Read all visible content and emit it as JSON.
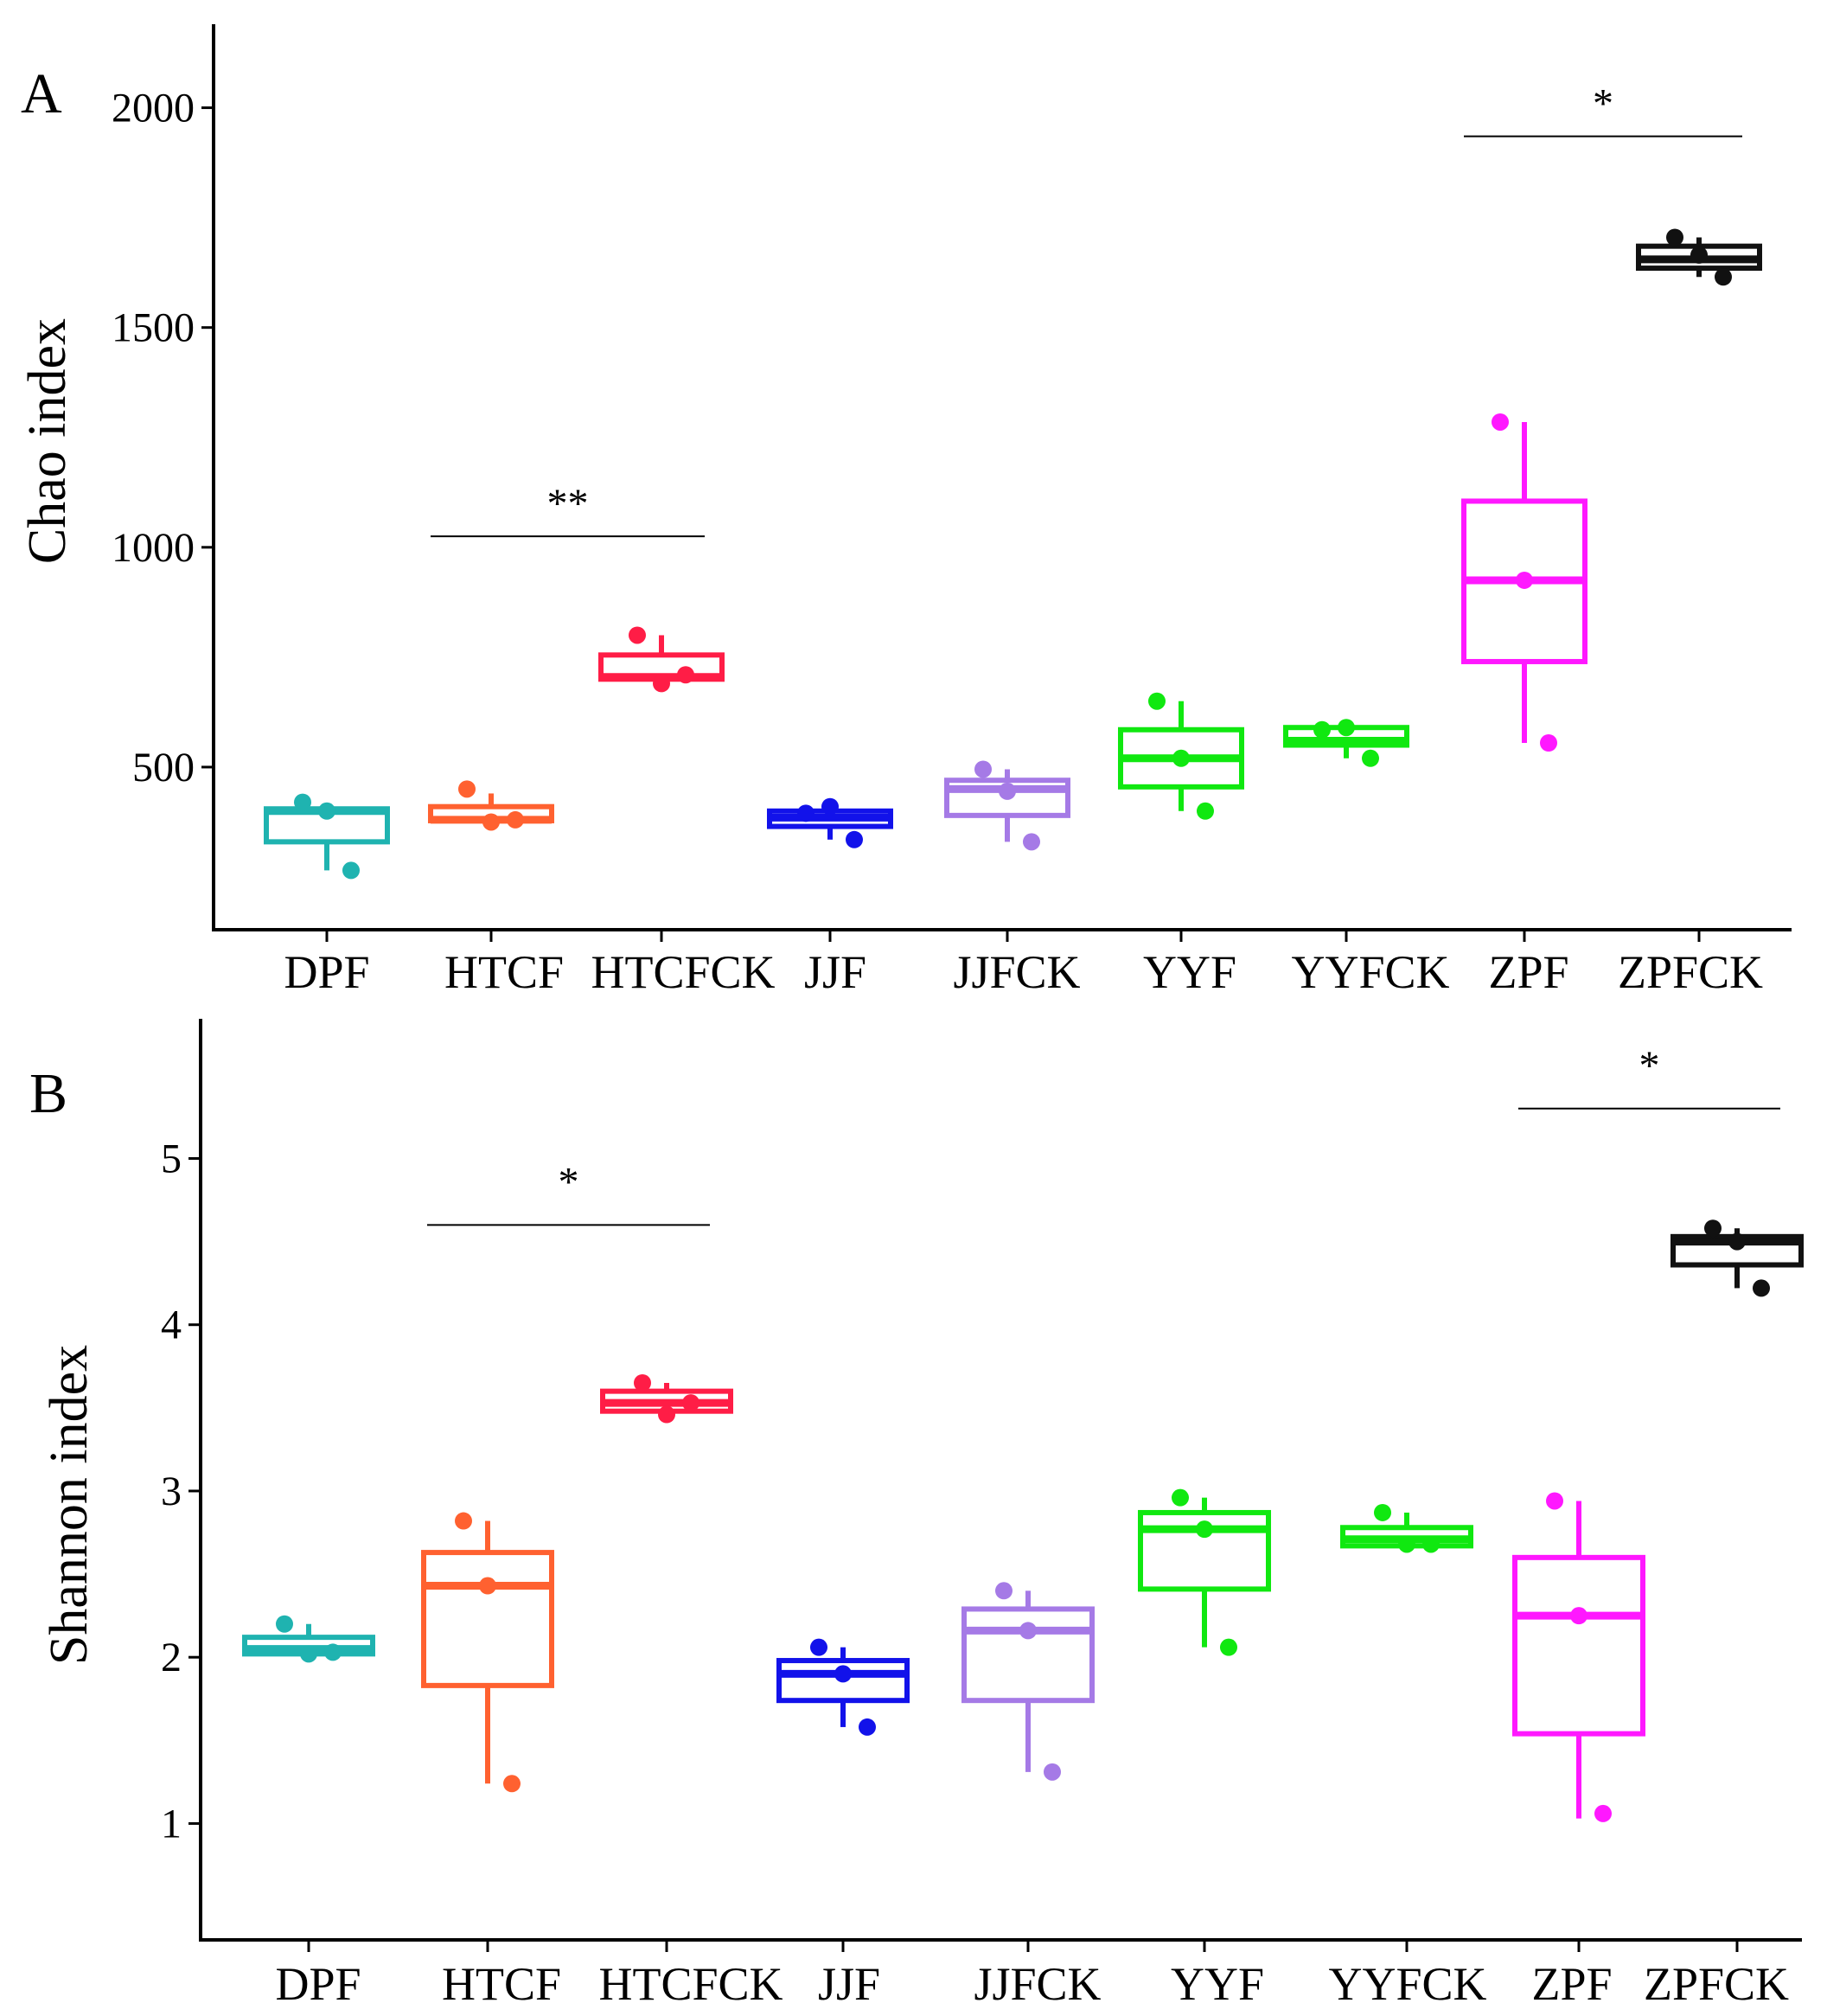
{
  "chart_data": [
    {
      "type": "box",
      "panel_label": "A",
      "title": "",
      "xlabel": "",
      "ylabel": "Chao index",
      "ylim": [
        130,
        2190
      ],
      "yticks": [
        500,
        1000,
        1500,
        2000
      ],
      "categories": [
        "DPF",
        "HTCF",
        "HTCFCK",
        "JJF",
        "JJFCK",
        "YYF",
        "YYFCK",
        "ZPF",
        "ZPFCK"
      ],
      "colors": [
        "#1fb3b0",
        "#ff6130",
        "#ff1d46",
        "#1212ea",
        "#a57ae6",
        "#10e810",
        "#10e810",
        "#ff18ff",
        "#111111"
      ],
      "boxes": [
        {
          "q1": 330,
          "median": 400,
          "q3": 405,
          "whisker_low": 265,
          "whisker_high": 415
        },
        {
          "q1": 378,
          "median": 380,
          "q3": 410,
          "whisker_low": 375,
          "whisker_high": 440
        },
        {
          "q1": 700,
          "median": 705,
          "q3": 755,
          "whisker_low": 690,
          "whisker_high": 800
        },
        {
          "q1": 365,
          "median": 385,
          "q3": 400,
          "whisker_low": 335,
          "whisker_high": 410
        },
        {
          "q1": 390,
          "median": 450,
          "q3": 470,
          "whisker_low": 330,
          "whisker_high": 495
        },
        {
          "q1": 455,
          "median": 520,
          "q3": 585,
          "whisker_low": 400,
          "whisker_high": 650
        },
        {
          "q1": 550,
          "median": 560,
          "q3": 590,
          "whisker_low": 520,
          "whisker_high": 590
        },
        {
          "q1": 740,
          "median": 925,
          "q3": 1105,
          "whisker_low": 555,
          "whisker_high": 1285
        },
        {
          "q1": 1635,
          "median": 1655,
          "q3": 1685,
          "whisker_low": 1615,
          "whisker_high": 1705
        }
      ],
      "points": [
        [
          420,
          400,
          265
        ],
        [
          450,
          375,
          380
        ],
        [
          800,
          690,
          710
        ],
        [
          395,
          410,
          335
        ],
        [
          495,
          445,
          330
        ],
        [
          650,
          520,
          400
        ],
        [
          585,
          590,
          520
        ],
        [
          1285,
          925,
          555
        ],
        [
          1705,
          1665,
          1615
        ]
      ],
      "significance": [
        {
          "label": "**",
          "from": "HTCF",
          "to": "HTCFCK",
          "y": 1025
        },
        {
          "label": "*",
          "from": "ZPF",
          "to": "ZPFCK",
          "y": 1935
        }
      ]
    },
    {
      "type": "box",
      "panel_label": "B",
      "title": "",
      "xlabel": "",
      "ylabel": "Shannon index",
      "ylim": [
        0.3,
        5.84
      ],
      "yticks": [
        1,
        2,
        3,
        4,
        5
      ],
      "categories": [
        "DPF",
        "HTCF",
        "HTCFCK",
        "JJF",
        "JJFCK",
        "YYF",
        "YYFCK",
        "ZPF",
        "ZPFCK"
      ],
      "colors": [
        "#1fb3b0",
        "#ff6130",
        "#ff1d46",
        "#1212ea",
        "#a57ae6",
        "#10e810",
        "#10e810",
        "#ff18ff",
        "#111111"
      ],
      "boxes": [
        {
          "q1": 2.02,
          "median": 2.05,
          "q3": 2.12,
          "whisker_low": 2.02,
          "whisker_high": 2.2
        },
        {
          "q1": 1.83,
          "median": 2.43,
          "q3": 2.63,
          "whisker_low": 1.24,
          "whisker_high": 2.82
        },
        {
          "q1": 3.48,
          "median": 3.53,
          "q3": 3.6,
          "whisker_low": 3.46,
          "whisker_high": 3.65
        },
        {
          "q1": 1.74,
          "median": 1.9,
          "q3": 1.98,
          "whisker_low": 1.58,
          "whisker_high": 2.06
        },
        {
          "q1": 1.74,
          "median": 2.16,
          "q3": 2.29,
          "whisker_low": 1.31,
          "whisker_high": 2.4
        },
        {
          "q1": 2.41,
          "median": 2.77,
          "q3": 2.87,
          "whisker_low": 2.06,
          "whisker_high": 2.96
        },
        {
          "q1": 2.67,
          "median": 2.71,
          "q3": 2.78,
          "whisker_low": 2.67,
          "whisker_high": 2.87
        },
        {
          "q1": 1.54,
          "median": 2.25,
          "q3": 2.6,
          "whisker_low": 1.03,
          "whisker_high": 2.94
        },
        {
          "q1": 4.36,
          "median": 4.5,
          "q3": 4.53,
          "whisker_low": 4.22,
          "whisker_high": 4.58
        }
      ],
      "points": [
        [
          2.2,
          2.02,
          2.03
        ],
        [
          2.82,
          2.43,
          1.24
        ],
        [
          3.65,
          3.46,
          3.53
        ],
        [
          2.06,
          1.9,
          1.58
        ],
        [
          2.4,
          2.16,
          1.31
        ],
        [
          2.96,
          2.77,
          2.06
        ],
        [
          2.87,
          2.68,
          2.68
        ],
        [
          2.94,
          2.25,
          1.06
        ],
        [
          4.58,
          4.5,
          4.22
        ]
      ],
      "significance": [
        {
          "label": "*",
          "from": "HTCF",
          "to": "HTCFCK",
          "y": 4.6
        },
        {
          "label": "*",
          "from": "ZPF",
          "to": "ZPFCK",
          "y": 5.3
        }
      ]
    }
  ]
}
